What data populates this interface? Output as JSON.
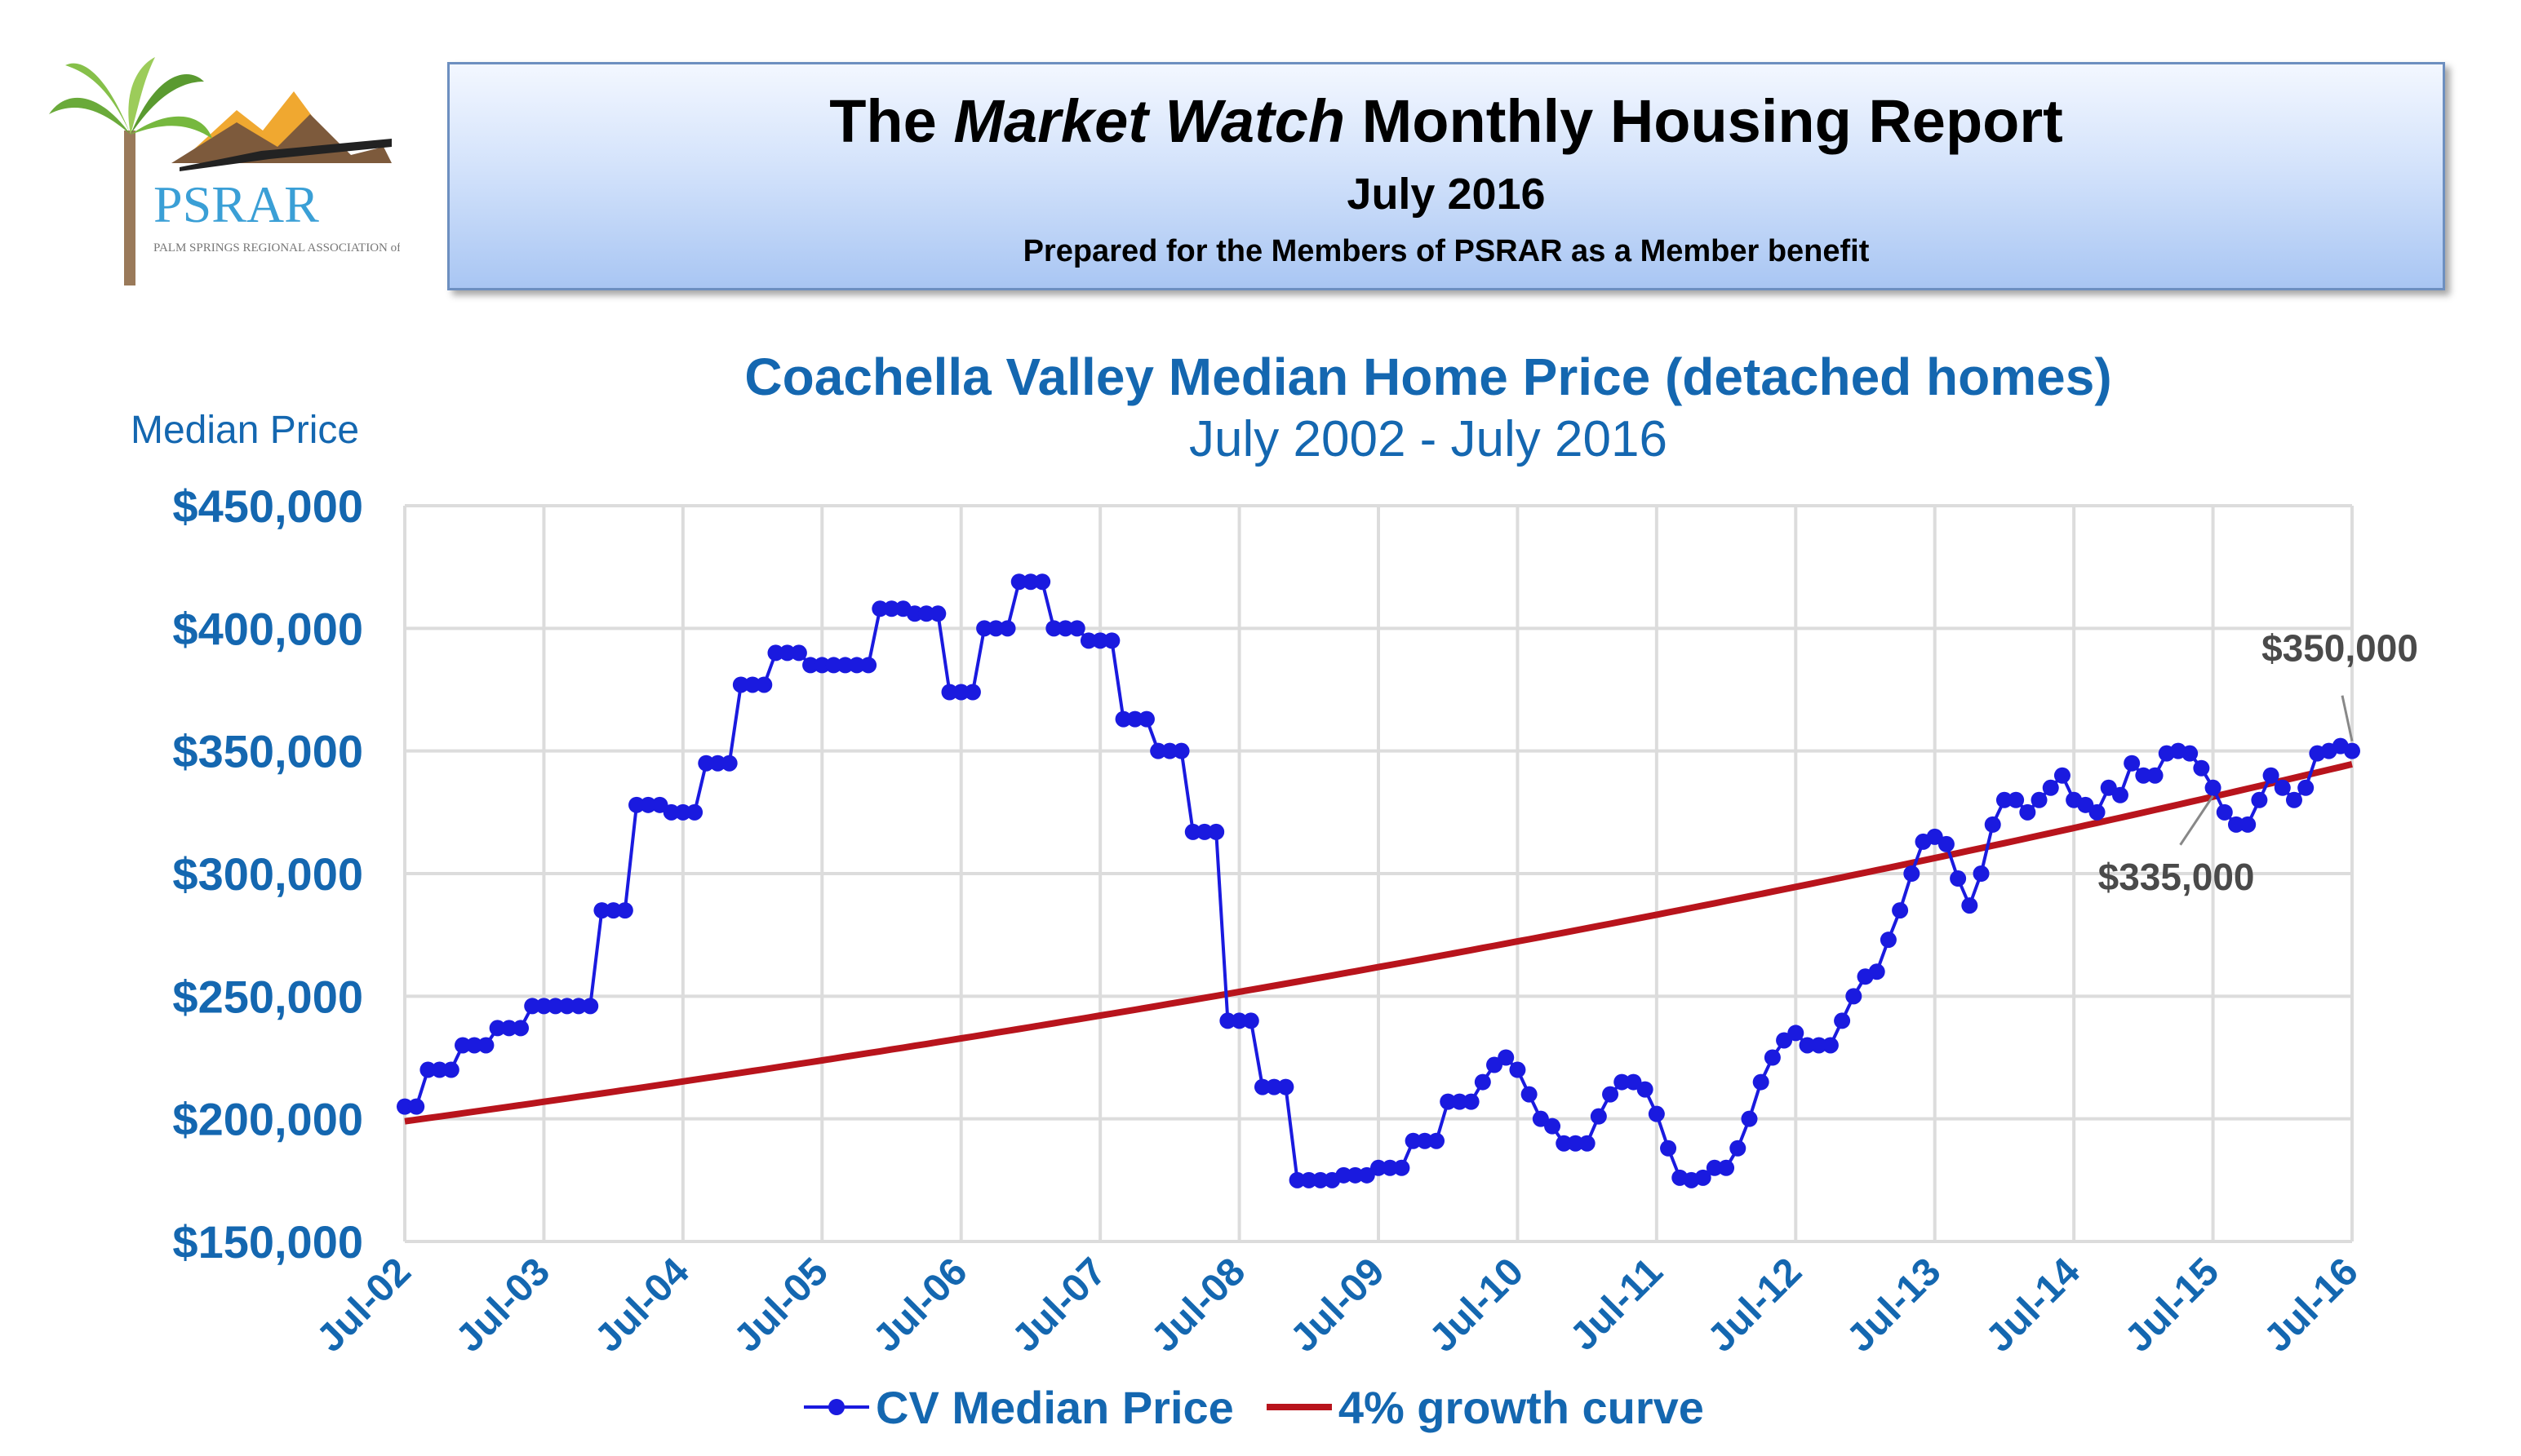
{
  "header": {
    "logo": {
      "text": "PSRAR",
      "tagline": "PALM SPRINGS REGIONAL ASSOCIATION of REALTORS®"
    },
    "title_prefix": "The ",
    "title_italic": "Market Watch",
    "title_suffix": " Monthly Housing Report",
    "date": "July 2016",
    "subtitle": "Prepared for the Members of PSRAR as a Member benefit"
  },
  "colors": {
    "title_blue": "#1467b0",
    "series_blue": "#1a1adf",
    "curve_red": "#b8141c",
    "grid": "#dcdcdc"
  },
  "chart_data": {
    "type": "line",
    "title": "Coachella Valley Median Home Price (detached homes)",
    "subtitle": "July 2002 - July 2016",
    "ylabel": "Median Price",
    "ylim": [
      150000,
      450000
    ],
    "yticks": [
      "$150,000",
      "$200,000",
      "$250,000",
      "$300,000",
      "$350,000",
      "$400,000",
      "$450,000"
    ],
    "xticks": [
      "Jul-02",
      "Jul-03",
      "Jul-04",
      "Jul-05",
      "Jul-06",
      "Jul-07",
      "Jul-08",
      "Jul-09",
      "Jul-10",
      "Jul-11",
      "Jul-12",
      "Jul-13",
      "Jul-14",
      "Jul-15",
      "Jul-16"
    ],
    "x_start": "Jul-02",
    "grid": true,
    "legend": "bottom",
    "series": [
      {
        "name": "CV Median Price",
        "style": "line-markers",
        "values": [
          205000,
          205000,
          220000,
          220000,
          220000,
          230000,
          230000,
          230000,
          237000,
          237000,
          237000,
          246000,
          246000,
          246000,
          246000,
          246000,
          246000,
          285000,
          285000,
          285000,
          328000,
          328000,
          328000,
          325000,
          325000,
          325000,
          345000,
          345000,
          345000,
          377000,
          377000,
          377000,
          390000,
          390000,
          390000,
          385000,
          385000,
          385000,
          385000,
          385000,
          385000,
          408000,
          408000,
          408000,
          406000,
          406000,
          406000,
          374000,
          374000,
          374000,
          400000,
          400000,
          400000,
          419000,
          419000,
          419000,
          400000,
          400000,
          400000,
          395000,
          395000,
          395000,
          363000,
          363000,
          363000,
          350000,
          350000,
          350000,
          317000,
          317000,
          317000,
          240000,
          240000,
          240000,
          213000,
          213000,
          213000,
          175000,
          175000,
          175000,
          175000,
          177000,
          177000,
          177000,
          180000,
          180000,
          180000,
          191000,
          191000,
          191000,
          207000,
          207000,
          207000,
          215000,
          222000,
          225000,
          220000,
          210000,
          200000,
          197000,
          190000,
          190000,
          190000,
          201000,
          210000,
          215000,
          215000,
          212000,
          202000,
          188000,
          176000,
          175000,
          176000,
          180000,
          180000,
          188000,
          200000,
          215000,
          225000,
          232000,
          235000,
          230000,
          230000,
          230000,
          240000,
          250000,
          258000,
          260000,
          273000,
          285000,
          300000,
          313000,
          315000,
          312000,
          298000,
          287000,
          300000,
          320000,
          330000,
          330000,
          325000,
          330000,
          335000,
          340000,
          330000,
          328000,
          325000,
          335000,
          332000,
          345000,
          340000,
          340000,
          349000,
          350000,
          349000,
          343000,
          335000,
          325000,
          320000,
          320000,
          330000,
          340000,
          335000,
          330000,
          335000,
          349000,
          350000,
          352000,
          350000
        ]
      },
      {
        "name": "4% growth curve",
        "style": "line",
        "start": 199000,
        "annual_growth": 0.04
      }
    ],
    "annotations": [
      {
        "text": "$350,000",
        "at": "Jul-16",
        "value": 350000
      },
      {
        "text": "$335,000",
        "at": "Jul-15",
        "value": 335000
      }
    ]
  }
}
